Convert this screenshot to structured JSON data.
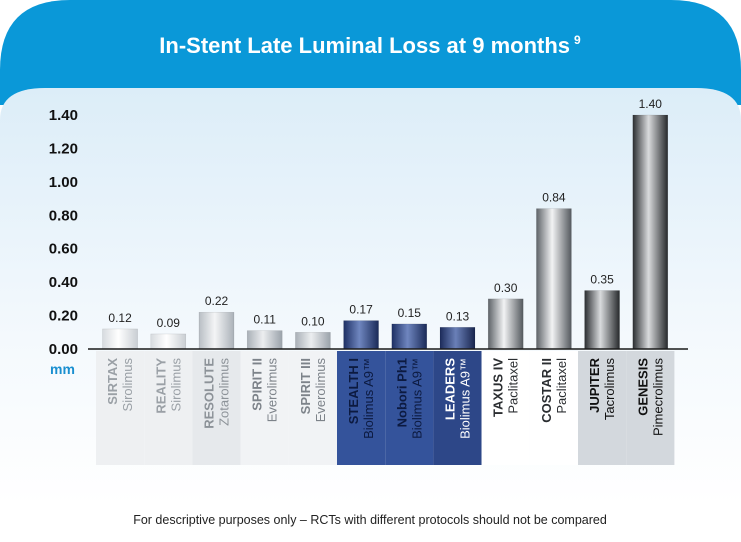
{
  "chart_data": {
    "type": "bar",
    "title": "In-Stent Late Luminal Loss at 9 months",
    "title_superscript": "9",
    "ylabel": "mm",
    "ylim": [
      0,
      1.4
    ],
    "yticks": [
      "0.00",
      "0.20",
      "0.40",
      "0.60",
      "0.80",
      "1.00",
      "1.20",
      "1.40"
    ],
    "grid": false,
    "categories": [
      {
        "name": "SIRTAX",
        "drug": "Sirolimus",
        "value": 0.12,
        "label": "0.12",
        "group": "light"
      },
      {
        "name": "REALITY",
        "drug": "Sirolimus",
        "value": 0.09,
        "label": "0.09",
        "group": "light"
      },
      {
        "name": "RESOLUTE",
        "drug": "Zotarolimus",
        "value": 0.22,
        "label": "0.22",
        "group": "mid-light"
      },
      {
        "name": "SPIRIT II",
        "drug": "Everolimus",
        "value": 0.11,
        "label": "0.11",
        "group": "lighter"
      },
      {
        "name": "SPIRIT III",
        "drug": "Everolimus",
        "value": 0.1,
        "label": "0.10",
        "group": "lighter"
      },
      {
        "name": "STEALTH I",
        "drug": "Biolimus A9™",
        "value": 0.17,
        "label": "0.17",
        "group": "blue"
      },
      {
        "name": "Nobori Ph1",
        "drug": "Biolimus A9™",
        "value": 0.15,
        "label": "0.15",
        "group": "blue"
      },
      {
        "name": "LEADERS",
        "drug": "Biolimus A9™",
        "value": 0.13,
        "label": "0.13",
        "group": "blue-dark"
      },
      {
        "name": "TAXUS IV",
        "drug": "Paclitaxel",
        "value": 0.3,
        "label": "0.30",
        "group": "gray"
      },
      {
        "name": "COSTAR II",
        "drug": "Paclitaxel",
        "value": 0.84,
        "label": "0.84",
        "group": "gray"
      },
      {
        "name": "JUPITER",
        "drug": "Tacrolimus",
        "value": 0.35,
        "label": "0.35",
        "group": "dark"
      },
      {
        "name": "GENESIS",
        "drug": "Pimecrolimus",
        "value": 1.4,
        "label": "1.40",
        "group": "dark"
      }
    ],
    "colors": {
      "header": "#0a98d8",
      "panel_top": "#e6f3fb",
      "panel_bottom": "#ffffff",
      "axis": "#1a1a1a",
      "ylabel": "#1a8fd0"
    }
  },
  "footnote": "For descriptive purposes only – RCTs with different protocols should not be compared"
}
